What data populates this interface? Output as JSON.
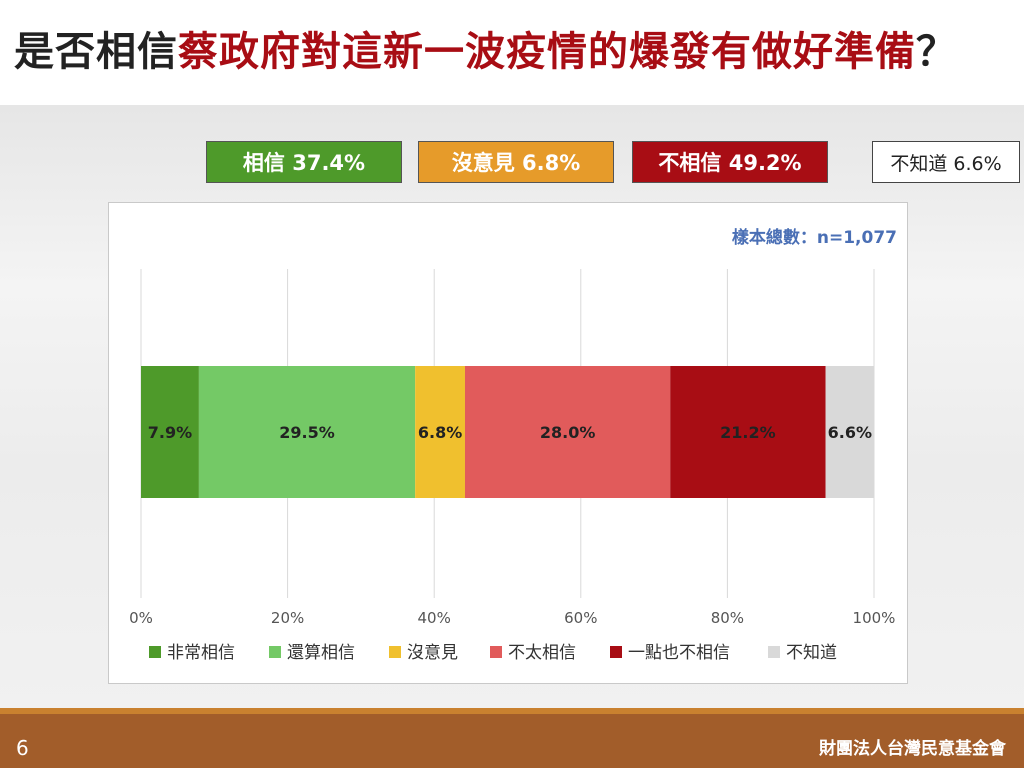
{
  "title": {
    "prefix": "是否相信",
    "highlight": "蔡政府對這新一波疫情的爆發有做好準備",
    "suffix": "？"
  },
  "summary": {
    "believe": "相信 37.4%",
    "neutral": "沒意見 6.8%",
    "disbelieve": "不相信 49.2%",
    "unknown": "不知道 6.6%"
  },
  "footer": {
    "page_number": "6",
    "organization": "財團法人台灣民意基金會"
  },
  "colors": {
    "very_believe": "#4e9a2a",
    "somewhat_believe": "#74c966",
    "neutral": "#f0c02e",
    "not_really_believe": "#e15b5b",
    "not_at_all_believe": "#a80d14",
    "unknown": "#d9d9d9",
    "sample_note": "#4a6fb5"
  },
  "chart_data": {
    "type": "bar",
    "orientation": "horizontal",
    "stacked": true,
    "note": "樣本總數：n=1,077",
    "xlim": [
      0,
      100
    ],
    "x_ticks": [
      "0%",
      "20%",
      "40%",
      "60%",
      "80%",
      "100%"
    ],
    "grid": true,
    "legend_position": "bottom",
    "series": [
      {
        "name": "非常相信",
        "value": 7.9,
        "label": "7.9%",
        "color": "#4e9a2a"
      },
      {
        "name": "還算相信",
        "value": 29.5,
        "label": "29.5%",
        "color": "#74c966"
      },
      {
        "name": "沒意見",
        "value": 6.8,
        "label": "6.8%",
        "color": "#f0c02e"
      },
      {
        "name": "不太相信",
        "value": 28.0,
        "label": "28.0%",
        "color": "#e15b5b"
      },
      {
        "name": "一點也不相信",
        "value": 21.2,
        "label": "21.2%",
        "color": "#a80d14"
      },
      {
        "name": "不知道",
        "value": 6.6,
        "label": "6.6%",
        "color": "#d9d9d9"
      }
    ]
  }
}
